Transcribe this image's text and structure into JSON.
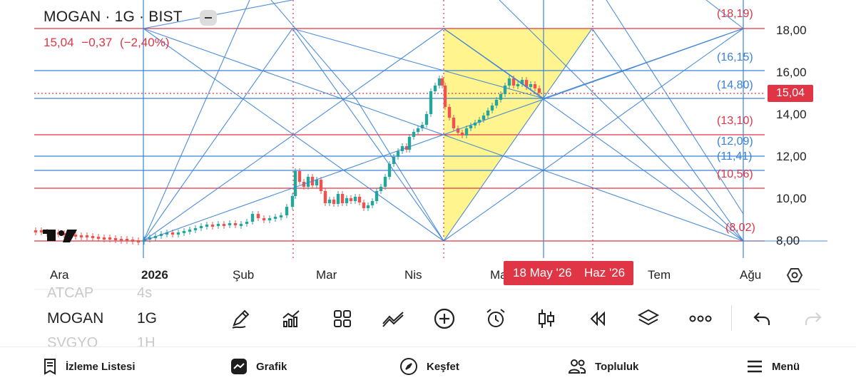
{
  "header": {
    "title": "MOGAN · 1G · BIST",
    "price": "15,04",
    "change": "−0,37",
    "change_pct": "(−2,40%)"
  },
  "price_axis": [
    "18,00",
    "16,00",
    "14,00",
    "12,00",
    "10,00",
    "8,00"
  ],
  "level_labels": [
    {
      "text": "(18,19)",
      "color": "#e03545"
    },
    {
      "text": "(16,15)",
      "color": "#3b82d6"
    },
    {
      "text": "(14,80)",
      "color": "#3b82d6"
    },
    {
      "text": "(13,10)",
      "color": "#e03545"
    },
    {
      "text": "(12,09)",
      "color": "#3b82d6"
    },
    {
      "text": "(11,41)",
      "color": "#3b82d6"
    },
    {
      "text": "(10,56)",
      "color": "#e03545"
    },
    {
      "text": "(8,02)",
      "color": "#e03545"
    }
  ],
  "current_price_tag": "15,04",
  "time_axis": [
    "Ara",
    "2026",
    "Şub",
    "Mar",
    "Nis",
    "Ma",
    "Tem",
    "Ağu"
  ],
  "crosshair_date": {
    "primary": "18 May '26",
    "secondary": "Haz '26"
  },
  "watchlist": [
    {
      "symbol": "ATCAP",
      "interval": "4s",
      "state": "faded"
    },
    {
      "symbol": "MOGAN",
      "interval": "1G",
      "state": "active"
    },
    {
      "symbol": "SVGYO",
      "interval": "1H",
      "state": "faded"
    }
  ],
  "toolbar_icons": [
    "pencil-icon",
    "indicators-icon",
    "templates-icon",
    "drawing-tools-icon",
    "add-icon",
    "alarm-icon",
    "candle-style-icon",
    "replay-icon",
    "layers-icon",
    "more-icon",
    "undo-icon",
    "redo-icon"
  ],
  "bottom_nav": [
    {
      "label": "İzleme Listesi",
      "icon": "watchlist-icon"
    },
    {
      "label": "Grafik",
      "icon": "chart-icon"
    },
    {
      "label": "Keşfet",
      "icon": "compass-icon"
    },
    {
      "label": "Topluluk",
      "icon": "community-icon"
    },
    {
      "label": "Menü",
      "icon": "menu-icon"
    }
  ],
  "colors": {
    "up": "#26a69a",
    "down": "#ef5350",
    "accent_red": "#e03545",
    "line_blue": "#3b82d6",
    "triangle_fill": "#fff27a"
  }
}
